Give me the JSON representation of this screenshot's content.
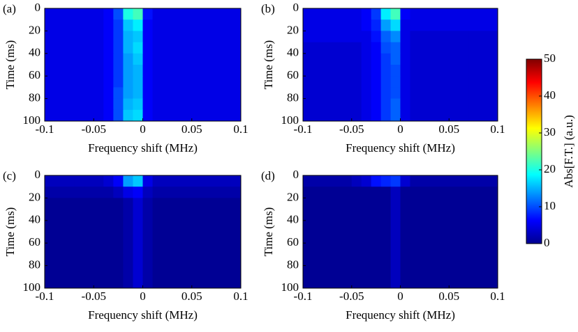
{
  "chart_data": [
    {
      "type": "heatmap",
      "label": "(a)",
      "xlabel": "Frequency shift (MHz)",
      "ylabel": "Time (ms)",
      "xlim": [
        -0.1,
        0.1
      ],
      "xticks": [
        -0.1,
        -0.05,
        0,
        0.05,
        0.1
      ],
      "ylim": [
        100,
        0
      ],
      "yticks": [
        0,
        20,
        40,
        60,
        80,
        100
      ],
      "z": [
        [
          5,
          5,
          5,
          5,
          5,
          5,
          6,
          10,
          20,
          22,
          7,
          5,
          5,
          5,
          5,
          5,
          5,
          5,
          5,
          5
        ],
        [
          5,
          5,
          5,
          5,
          5,
          5,
          6,
          9,
          16,
          18,
          6,
          5,
          5,
          5,
          5,
          5,
          5,
          5,
          5,
          5
        ],
        [
          5,
          5,
          5,
          5,
          5,
          5,
          6,
          9,
          15,
          16,
          6,
          5,
          5,
          5,
          5,
          5,
          5,
          5,
          5,
          5
        ],
        [
          5,
          5,
          5,
          5,
          5,
          5,
          6,
          9,
          15,
          17,
          6,
          5,
          5,
          5,
          5,
          5,
          5,
          5,
          5,
          5
        ],
        [
          5,
          5,
          5,
          5,
          5,
          5,
          6,
          9,
          14,
          16,
          6,
          5,
          5,
          5,
          5,
          5,
          5,
          5,
          5,
          5
        ],
        [
          5,
          5,
          5,
          5,
          5,
          5,
          6,
          9,
          14,
          15,
          6,
          5,
          5,
          5,
          5,
          5,
          5,
          5,
          5,
          5
        ],
        [
          5,
          5,
          5,
          5,
          5,
          5,
          6,
          9,
          14,
          15,
          6,
          5,
          5,
          5,
          5,
          5,
          5,
          5,
          5,
          5
        ],
        [
          5,
          5,
          5,
          5,
          5,
          5,
          6,
          10,
          14,
          15,
          6,
          5,
          5,
          5,
          5,
          5,
          5,
          5,
          5,
          5
        ],
        [
          5,
          5,
          5,
          5,
          5,
          5,
          6,
          10,
          15,
          16,
          6,
          5,
          5,
          5,
          5,
          5,
          5,
          5,
          5,
          5
        ],
        [
          5,
          5,
          5,
          5,
          5,
          5,
          6,
          10,
          16,
          17,
          6,
          5,
          5,
          5,
          5,
          5,
          5,
          5,
          5,
          5
        ]
      ]
    },
    {
      "type": "heatmap",
      "label": "(b)",
      "xlabel": "Frequency shift (MHz)",
      "ylabel": "Time (ms)",
      "xlim": [
        -0.1,
        0.1
      ],
      "xticks": [
        -0.1,
        -0.05,
        0,
        0.05,
        0.1
      ],
      "ylim": [
        100,
        0
      ],
      "yticks": [
        0,
        20,
        40,
        60,
        80,
        100
      ],
      "z": [
        [
          5,
          5,
          5,
          5,
          5,
          5,
          6,
          9,
          18,
          22,
          6,
          5,
          5,
          5,
          5,
          5,
          5,
          5,
          5,
          5
        ],
        [
          5,
          5,
          5,
          5,
          5,
          5,
          6,
          8,
          14,
          17,
          5,
          5,
          5,
          5,
          5,
          5,
          5,
          5,
          5,
          5
        ],
        [
          5,
          5,
          5,
          5,
          5,
          5,
          5,
          7,
          11,
          13,
          5,
          4,
          4,
          4,
          4,
          4,
          4,
          4,
          4,
          4
        ],
        [
          4,
          4,
          4,
          4,
          4,
          4,
          5,
          6,
          10,
          11,
          5,
          4,
          4,
          4,
          4,
          4,
          4,
          4,
          4,
          4
        ],
        [
          4,
          4,
          4,
          4,
          4,
          4,
          5,
          6,
          9,
          11,
          5,
          4,
          4,
          4,
          4,
          4,
          4,
          4,
          4,
          4
        ],
        [
          4,
          4,
          4,
          4,
          4,
          4,
          5,
          6,
          9,
          10,
          5,
          4,
          4,
          4,
          4,
          4,
          4,
          4,
          4,
          4
        ],
        [
          4,
          4,
          4,
          4,
          4,
          4,
          5,
          6,
          9,
          10,
          5,
          4,
          4,
          4,
          4,
          4,
          4,
          4,
          4,
          4
        ],
        [
          4,
          4,
          4,
          4,
          4,
          4,
          5,
          6,
          9,
          10,
          5,
          4,
          4,
          4,
          4,
          4,
          4,
          4,
          4,
          4
        ],
        [
          4,
          4,
          4,
          4,
          4,
          4,
          5,
          6,
          9,
          11,
          5,
          4,
          4,
          4,
          4,
          4,
          4,
          4,
          4,
          4
        ],
        [
          4,
          4,
          4,
          4,
          4,
          4,
          5,
          6,
          9,
          11,
          5,
          4,
          4,
          4,
          4,
          4,
          4,
          4,
          4,
          4
        ]
      ]
    },
    {
      "type": "heatmap",
      "label": "(c)",
      "xlabel": "Frequency shift (MHz)",
      "ylabel": "Time (ms)",
      "xlim": [
        -0.1,
        0.1
      ],
      "xticks": [
        -0.1,
        -0.05,
        0,
        0.05,
        0.1
      ],
      "ylim": [
        100,
        0
      ],
      "yticks": [
        0,
        20,
        40,
        60,
        80,
        100
      ],
      "z": [
        [
          3,
          3,
          3,
          3,
          3,
          3,
          4,
          6,
          14,
          16,
          5,
          3,
          3,
          3,
          3,
          3,
          3,
          3,
          3,
          3
        ],
        [
          2,
          2,
          2,
          2,
          2,
          2,
          2,
          3,
          5,
          6,
          3,
          2,
          2,
          2,
          2,
          2,
          2,
          2,
          2,
          2
        ],
        [
          1,
          1,
          1,
          1,
          1,
          1,
          1,
          1,
          2,
          4,
          2,
          1,
          1,
          1,
          1,
          1,
          1,
          1,
          1,
          1
        ],
        [
          1,
          1,
          1,
          1,
          1,
          1,
          1,
          1,
          2,
          4,
          2,
          1,
          1,
          1,
          1,
          1,
          1,
          1,
          1,
          1
        ],
        [
          1,
          1,
          1,
          1,
          1,
          1,
          1,
          1,
          2,
          4,
          2,
          1,
          1,
          1,
          1,
          1,
          1,
          1,
          1,
          1
        ],
        [
          1,
          1,
          1,
          1,
          1,
          1,
          1,
          1,
          2,
          4,
          2,
          1,
          1,
          1,
          1,
          1,
          1,
          1,
          1,
          1
        ],
        [
          1,
          1,
          1,
          1,
          1,
          1,
          1,
          1,
          2,
          4,
          2,
          1,
          1,
          1,
          1,
          1,
          1,
          1,
          1,
          1
        ],
        [
          1,
          1,
          1,
          1,
          1,
          1,
          1,
          1,
          2,
          4,
          2,
          1,
          1,
          1,
          1,
          1,
          1,
          1,
          1,
          1
        ],
        [
          1,
          1,
          1,
          1,
          1,
          1,
          1,
          1,
          2,
          4,
          2,
          1,
          1,
          1,
          1,
          1,
          1,
          1,
          1,
          1
        ],
        [
          1,
          1,
          1,
          1,
          1,
          1,
          1,
          1,
          2,
          4,
          2,
          1,
          1,
          1,
          1,
          1,
          1,
          1,
          1,
          1
        ]
      ]
    },
    {
      "type": "heatmap",
      "label": "(d)",
      "xlabel": "Frequency shift (MHz)",
      "ylabel": "Time (ms)",
      "xlim": [
        -0.1,
        0.1
      ],
      "xticks": [
        -0.1,
        -0.05,
        0,
        0.05,
        0.1
      ],
      "ylim": [
        100,
        0
      ],
      "yticks": [
        0,
        20,
        40,
        60,
        80,
        100
      ],
      "z": [
        [
          2,
          2,
          2,
          2,
          2,
          3,
          4,
          7,
          8,
          9,
          4,
          2,
          2,
          2,
          2,
          2,
          2,
          2,
          2,
          2
        ],
        [
          1,
          1,
          1,
          1,
          1,
          1,
          1,
          1,
          1,
          3,
          1,
          1,
          1,
          1,
          1,
          1,
          1,
          1,
          1,
          1
        ],
        [
          1,
          1,
          1,
          1,
          1,
          1,
          1,
          1,
          1,
          3,
          1,
          1,
          1,
          1,
          1,
          1,
          1,
          1,
          1,
          1
        ],
        [
          1,
          1,
          1,
          1,
          1,
          1,
          1,
          1,
          1,
          3,
          1,
          1,
          1,
          1,
          1,
          1,
          1,
          1,
          1,
          1
        ],
        [
          1,
          1,
          1,
          1,
          1,
          1,
          1,
          1,
          1,
          3,
          1,
          1,
          1,
          1,
          1,
          1,
          1,
          1,
          1,
          1
        ],
        [
          1,
          1,
          1,
          1,
          1,
          1,
          1,
          1,
          1,
          3,
          1,
          1,
          1,
          1,
          1,
          1,
          1,
          1,
          1,
          1
        ],
        [
          1,
          1,
          1,
          1,
          1,
          1,
          1,
          1,
          1,
          3,
          1,
          1,
          1,
          1,
          1,
          1,
          1,
          1,
          1,
          1
        ],
        [
          1,
          1,
          1,
          1,
          1,
          1,
          1,
          1,
          1,
          3,
          1,
          1,
          1,
          1,
          1,
          1,
          1,
          1,
          1,
          1
        ],
        [
          1,
          1,
          1,
          1,
          1,
          1,
          1,
          1,
          1,
          3,
          1,
          1,
          1,
          1,
          1,
          1,
          1,
          1,
          1,
          1
        ],
        [
          1,
          1,
          1,
          1,
          1,
          1,
          1,
          1,
          1,
          3,
          1,
          1,
          1,
          1,
          1,
          1,
          1,
          1,
          1,
          1
        ]
      ]
    },
    {
      "type": "colorbar",
      "label": "Abs[F.T.] (a.u.)",
      "colormap": "jet",
      "ylim": [
        0,
        50
      ],
      "yticks": [
        0,
        10,
        20,
        30,
        40,
        50
      ]
    }
  ]
}
